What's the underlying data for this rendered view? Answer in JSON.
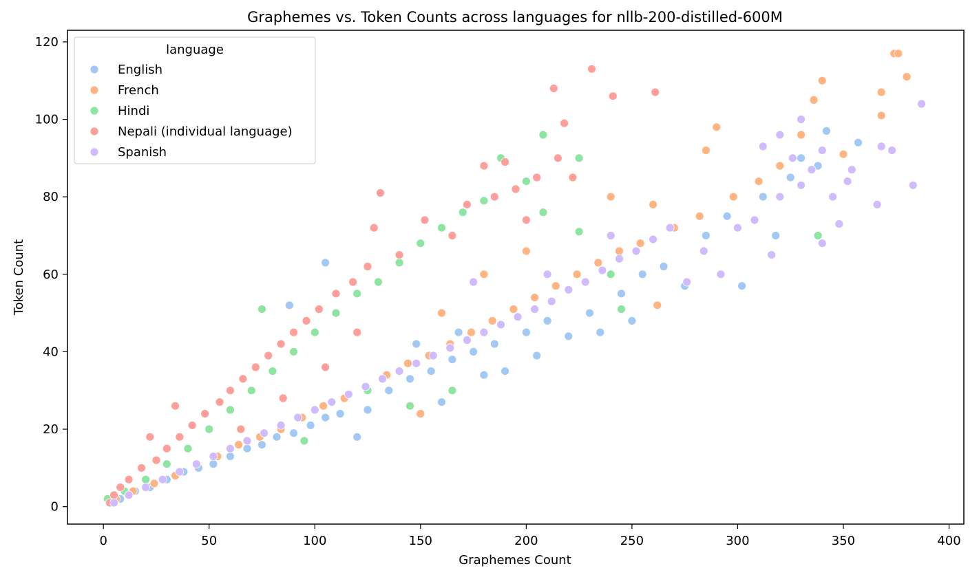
{
  "chart_data": {
    "type": "scatter",
    "title": "Graphemes vs. Token Counts across languages for nllb-200-distilled-600M",
    "xlabel": "Graphemes Count",
    "ylabel": "Token Count",
    "xlim": [
      -17,
      407
    ],
    "ylim": [
      -4.5,
      123
    ],
    "xticks": [
      0,
      50,
      100,
      150,
      200,
      250,
      300,
      350,
      400
    ],
    "yticks": [
      0,
      20,
      40,
      60,
      80,
      100,
      120
    ],
    "grid": false,
    "legend": {
      "title": "language",
      "position": "top-left"
    },
    "series": [
      {
        "name": "English",
        "color": "#a1c9f4",
        "points": [
          [
            8,
            2
          ],
          [
            15,
            4
          ],
          [
            22,
            5
          ],
          [
            30,
            7
          ],
          [
            38,
            9
          ],
          [
            45,
            10
          ],
          [
            52,
            11
          ],
          [
            60,
            13
          ],
          [
            68,
            15
          ],
          [
            75,
            16
          ],
          [
            82,
            18
          ],
          [
            90,
            19
          ],
          [
            98,
            21
          ],
          [
            105,
            23
          ],
          [
            112,
            24
          ],
          [
            120,
            18
          ],
          [
            125,
            25
          ],
          [
            135,
            30
          ],
          [
            145,
            33
          ],
          [
            155,
            35
          ],
          [
            160,
            27
          ],
          [
            165,
            38
          ],
          [
            175,
            40
          ],
          [
            180,
            34
          ],
          [
            185,
            42
          ],
          [
            190,
            35
          ],
          [
            200,
            45
          ],
          [
            205,
            39
          ],
          [
            210,
            48
          ],
          [
            220,
            44
          ],
          [
            230,
            50
          ],
          [
            235,
            45
          ],
          [
            245,
            55
          ],
          [
            250,
            48
          ],
          [
            255,
            60
          ],
          [
            265,
            62
          ],
          [
            275,
            57
          ],
          [
            285,
            70
          ],
          [
            295,
            75
          ],
          [
            302,
            57
          ],
          [
            312,
            80
          ],
          [
            318,
            70
          ],
          [
            325,
            85
          ],
          [
            330,
            90
          ],
          [
            338,
            88
          ],
          [
            342,
            97
          ],
          [
            357,
            94
          ],
          [
            105,
            63
          ],
          [
            88,
            52
          ],
          [
            148,
            42
          ],
          [
            168,
            45
          ]
        ]
      },
      {
        "name": "French",
        "color": "#ffb482",
        "points": [
          [
            6,
            2
          ],
          [
            14,
            4
          ],
          [
            24,
            6
          ],
          [
            34,
            8
          ],
          [
            44,
            11
          ],
          [
            54,
            13
          ],
          [
            64,
            16
          ],
          [
            74,
            18
          ],
          [
            84,
            20
          ],
          [
            94,
            23
          ],
          [
            104,
            26
          ],
          [
            114,
            28
          ],
          [
            124,
            31
          ],
          [
            134,
            34
          ],
          [
            144,
            37
          ],
          [
            154,
            39
          ],
          [
            164,
            42
          ],
          [
            174,
            45
          ],
          [
            184,
            48
          ],
          [
            194,
            51
          ],
          [
            204,
            54
          ],
          [
            214,
            57
          ],
          [
            224,
            60
          ],
          [
            234,
            63
          ],
          [
            244,
            66
          ],
          [
            254,
            68
          ],
          [
            262,
            52
          ],
          [
            270,
            72
          ],
          [
            282,
            75
          ],
          [
            290,
            98
          ],
          [
            298,
            80
          ],
          [
            310,
            84
          ],
          [
            320,
            88
          ],
          [
            330,
            96
          ],
          [
            336,
            105
          ],
          [
            340,
            110
          ],
          [
            350,
            91
          ],
          [
            368,
            101
          ],
          [
            368,
            107
          ],
          [
            374,
            117
          ],
          [
            376,
            117
          ],
          [
            380,
            111
          ],
          [
            150,
            24
          ],
          [
            160,
            50
          ],
          [
            180,
            60
          ],
          [
            200,
            66
          ],
          [
            240,
            80
          ],
          [
            260,
            78
          ],
          [
            285,
            92
          ]
        ]
      },
      {
        "name": "Hindi",
        "color": "#8de5a1",
        "points": [
          [
            2,
            2
          ],
          [
            10,
            4
          ],
          [
            20,
            7
          ],
          [
            30,
            11
          ],
          [
            40,
            15
          ],
          [
            50,
            20
          ],
          [
            60,
            25
          ],
          [
            70,
            30
          ],
          [
            75,
            51
          ],
          [
            80,
            35
          ],
          [
            90,
            40
          ],
          [
            100,
            45
          ],
          [
            110,
            50
          ],
          [
            120,
            55
          ],
          [
            130,
            58
          ],
          [
            140,
            63
          ],
          [
            150,
            68
          ],
          [
            160,
            72
          ],
          [
            170,
            76
          ],
          [
            180,
            79
          ],
          [
            188,
            90
          ],
          [
            200,
            84
          ],
          [
            208,
            96
          ],
          [
            208,
            76
          ],
          [
            225,
            90
          ],
          [
            225,
            71
          ],
          [
            240,
            60
          ],
          [
            245,
            51
          ],
          [
            338,
            70
          ],
          [
            95,
            17
          ],
          [
            125,
            30
          ],
          [
            145,
            26
          ],
          [
            165,
            30
          ]
        ]
      },
      {
        "name": "Nepali (individual language)",
        "color": "#ff9f9b",
        "points": [
          [
            3,
            1
          ],
          [
            5,
            3
          ],
          [
            8,
            5
          ],
          [
            12,
            7
          ],
          [
            18,
            10
          ],
          [
            22,
            18
          ],
          [
            25,
            12
          ],
          [
            30,
            15
          ],
          [
            34,
            26
          ],
          [
            36,
            18
          ],
          [
            42,
            21
          ],
          [
            48,
            24
          ],
          [
            55,
            27
          ],
          [
            60,
            30
          ],
          [
            66,
            33
          ],
          [
            72,
            36
          ],
          [
            78,
            39
          ],
          [
            84,
            42
          ],
          [
            90,
            45
          ],
          [
            96,
            48
          ],
          [
            102,
            51
          ],
          [
            110,
            55
          ],
          [
            118,
            58
          ],
          [
            125,
            62
          ],
          [
            131,
            81
          ],
          [
            128,
            72
          ],
          [
            140,
            65
          ],
          [
            152,
            74
          ],
          [
            165,
            70
          ],
          [
            172,
            78
          ],
          [
            180,
            88
          ],
          [
            185,
            80
          ],
          [
            190,
            89
          ],
          [
            195,
            82
          ],
          [
            200,
            74
          ],
          [
            205,
            85
          ],
          [
            213,
            108
          ],
          [
            215,
            90
          ],
          [
            218,
            99
          ],
          [
            222,
            85
          ],
          [
            231,
            113
          ],
          [
            241,
            106
          ],
          [
            261,
            107
          ],
          [
            65,
            20
          ],
          [
            85,
            28
          ],
          [
            105,
            36
          ],
          [
            120,
            45
          ]
        ]
      },
      {
        "name": "Spanish",
        "color": "#d0bbff",
        "points": [
          [
            5,
            1
          ],
          [
            12,
            3
          ],
          [
            20,
            5
          ],
          [
            28,
            7
          ],
          [
            36,
            9
          ],
          [
            44,
            11
          ],
          [
            52,
            13
          ],
          [
            60,
            15
          ],
          [
            68,
            17
          ],
          [
            76,
            19
          ],
          [
            84,
            21
          ],
          [
            92,
            23
          ],
          [
            100,
            25
          ],
          [
            108,
            27
          ],
          [
            116,
            29
          ],
          [
            124,
            31
          ],
          [
            132,
            33
          ],
          [
            140,
            35
          ],
          [
            148,
            37
          ],
          [
            156,
            39
          ],
          [
            164,
            41
          ],
          [
            172,
            43
          ],
          [
            180,
            45
          ],
          [
            188,
            47
          ],
          [
            196,
            49
          ],
          [
            204,
            51
          ],
          [
            212,
            53
          ],
          [
            220,
            56
          ],
          [
            228,
            58
          ],
          [
            236,
            61
          ],
          [
            244,
            64
          ],
          [
            252,
            66
          ],
          [
            260,
            69
          ],
          [
            268,
            72
          ],
          [
            276,
            58
          ],
          [
            284,
            66
          ],
          [
            292,
            60
          ],
          [
            300,
            72
          ],
          [
            308,
            74
          ],
          [
            312,
            93
          ],
          [
            316,
            65
          ],
          [
            320,
            80
          ],
          [
            326,
            90
          ],
          [
            330,
            83
          ],
          [
            335,
            87
          ],
          [
            340,
            68
          ],
          [
            345,
            80
          ],
          [
            348,
            73
          ],
          [
            352,
            84
          ],
          [
            354,
            87
          ],
          [
            366,
            78
          ],
          [
            368,
            93
          ],
          [
            373,
            92
          ],
          [
            383,
            83
          ],
          [
            387,
            104
          ],
          [
            320,
            96
          ],
          [
            330,
            100
          ],
          [
            340,
            92
          ],
          [
            175,
            58
          ],
          [
            210,
            60
          ],
          [
            240,
            70
          ]
        ]
      }
    ]
  }
}
